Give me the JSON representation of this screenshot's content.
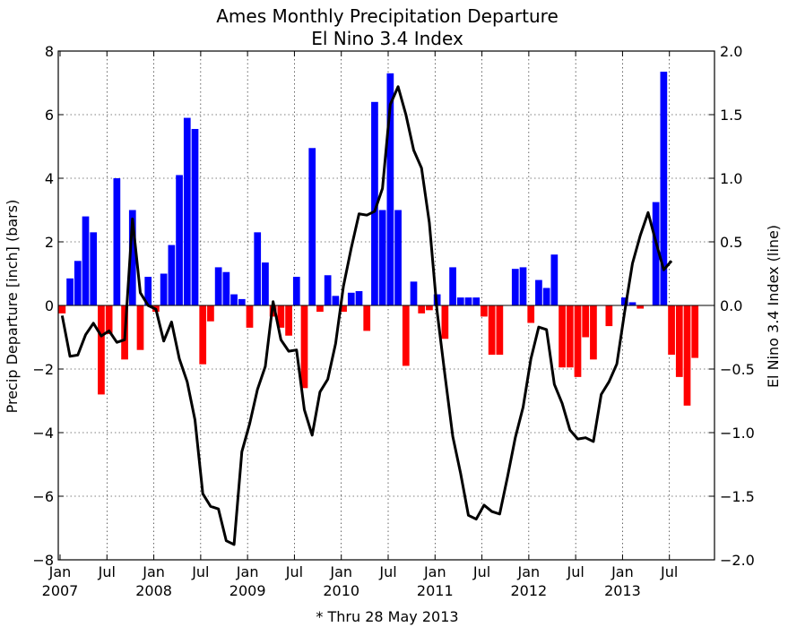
{
  "chart_data": {
    "type": "bar",
    "title": "Ames Monthly Precipitation Departure",
    "subtitle": "El Nino 3.4 Index",
    "ylabel": "Precip Departure [inch] (bars)",
    "y2label": "El Nino 3.4 Index (line)",
    "footnote": "* Thru 28 May 2013",
    "ylim": [
      -8,
      8
    ],
    "y2lim": [
      -2.0,
      2.0
    ],
    "yticks": [
      "−8",
      "−6",
      "−4",
      "−2",
      "0",
      "2",
      "4",
      "6",
      "8"
    ],
    "y2ticks": [
      "−2.0",
      "−1.5",
      "−1.0",
      "−0.5",
      "0.0",
      "0.5",
      "1.0",
      "1.5",
      "2.0"
    ],
    "xticks": [
      {
        "month": "Jan",
        "year": "2007"
      },
      {
        "month": "Jul",
        "year": ""
      },
      {
        "month": "Jan",
        "year": "2008"
      },
      {
        "month": "Jul",
        "year": ""
      },
      {
        "month": "Jan",
        "year": "2009"
      },
      {
        "month": "Jul",
        "year": ""
      },
      {
        "month": "Jan",
        "year": "2010"
      },
      {
        "month": "Jul",
        "year": ""
      },
      {
        "month": "Jan",
        "year": "2011"
      },
      {
        "month": "Jul",
        "year": ""
      },
      {
        "month": "Jan",
        "year": "2012"
      },
      {
        "month": "Jul",
        "year": ""
      },
      {
        "month": "Jan",
        "year": "2013"
      },
      {
        "month": "Jul",
        "year": ""
      }
    ],
    "grid": true,
    "start_month": "2007-01",
    "series": [
      {
        "type": "bar",
        "axis": "left",
        "positive_color": "#0000ff",
        "negative_color": "#ff0000",
        "values": [
          -0.25,
          0.85,
          1.4,
          2.8,
          2.3,
          -2.8,
          -0.9,
          4.0,
          -1.7,
          3.0,
          -1.4,
          0.9,
          -0.2,
          1.0,
          1.9,
          4.1,
          5.9,
          5.55,
          -1.85,
          -0.5,
          1.2,
          1.05,
          0.35,
          0.2,
          -0.7,
          2.3,
          1.35,
          -0.35,
          -0.7,
          -0.95,
          0.9,
          -2.6,
          4.95,
          -0.2,
          0.95,
          0.3,
          -0.2,
          0.4,
          0.45,
          -0.8,
          6.4,
          3.0,
          7.3,
          3.0,
          -1.9,
          0.75,
          -0.25,
          -0.15,
          0.35,
          -1.05,
          1.2,
          0.25,
          0.25,
          0.25,
          -0.35,
          -1.55,
          -1.55,
          0.0,
          1.15,
          1.2,
          -0.55,
          0.8,
          0.55,
          1.6,
          -1.95,
          -1.95,
          -2.25,
          -1.0,
          -1.7,
          0.0,
          -0.65,
          0.0,
          0.25,
          0.1,
          -0.1,
          0.0,
          3.25,
          7.35,
          -1.55,
          -2.25,
          -3.15,
          -1.65
        ]
      },
      {
        "type": "line",
        "axis": "right",
        "color": "#000000",
        "values": [
          -0.08,
          -0.4,
          -0.39,
          -0.23,
          -0.14,
          -0.24,
          -0.2,
          -0.29,
          -0.27,
          0.68,
          0.1,
          0.0,
          -0.03,
          -0.28,
          -0.13,
          -0.42,
          -0.6,
          -0.9,
          -1.48,
          -1.58,
          -1.6,
          -1.85,
          -1.88,
          -1.15,
          -0.93,
          -0.66,
          -0.48,
          0.03,
          -0.27,
          -0.36,
          -0.35,
          -0.82,
          -1.02,
          -0.68,
          -0.58,
          -0.3,
          0.15,
          0.45,
          0.72,
          0.71,
          0.74,
          0.92,
          1.58,
          1.72,
          1.5,
          1.22,
          1.08,
          0.65,
          -0.05,
          -0.55,
          -1.03,
          -1.32,
          -1.65,
          -1.68,
          -1.57,
          -1.62,
          -1.64,
          -1.35,
          -1.04,
          -0.8,
          -0.42,
          -0.17,
          -0.19,
          -0.62,
          -0.77,
          -0.98,
          -1.05,
          -1.04,
          -1.07,
          -0.7,
          -0.6,
          -0.46,
          -0.05,
          0.33,
          0.55,
          0.73,
          0.5,
          0.28,
          0.35
        ]
      }
    ]
  }
}
